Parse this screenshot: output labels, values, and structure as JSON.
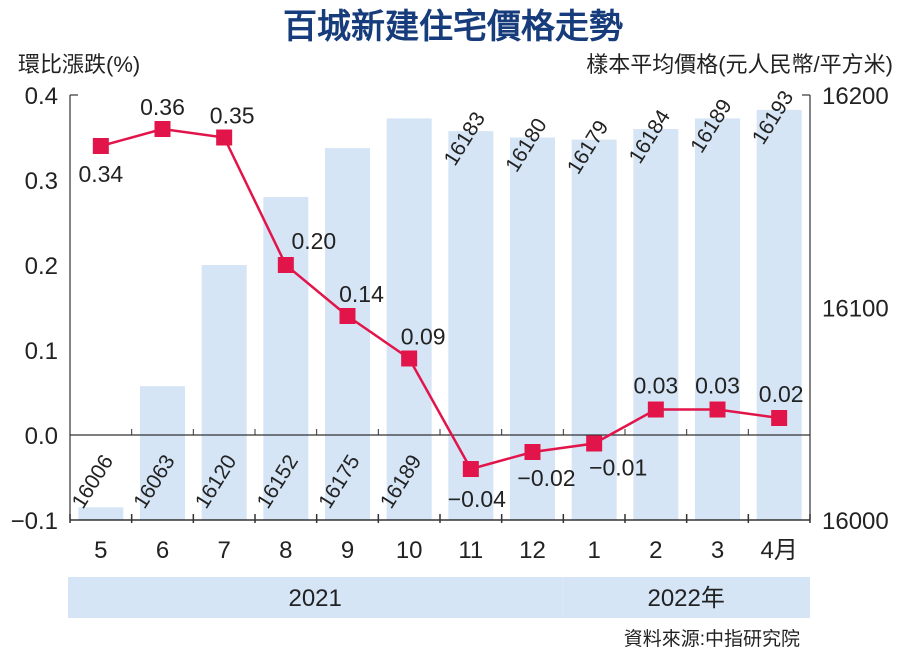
{
  "chart_data": {
    "type": "bar+line",
    "title": "百城新建住宅價格走勢",
    "ylabel_left": "環比漲跌(%)",
    "ylabel_right": "樣本平均價格(元人民幣/平方米)",
    "categories": [
      "5",
      "6",
      "7",
      "8",
      "9",
      "10",
      "11",
      "12",
      "1",
      "2",
      "3",
      "4月"
    ],
    "year_groups": [
      {
        "label": "2021",
        "count": 8
      },
      {
        "label": "2022年",
        "count": 4
      }
    ],
    "left_axis": {
      "ylim": [
        -0.1,
        0.4
      ],
      "ticks": [
        "0.4",
        "0.3",
        "0.2",
        "0.1",
        "0.0",
        "−0.1"
      ],
      "tick_values": [
        0.4,
        0.3,
        0.2,
        0.1,
        0.0,
        -0.1
      ]
    },
    "right_axis": {
      "ylim": [
        16000,
        16200
      ],
      "ticks": [
        "16200",
        "16100",
        "16000"
      ],
      "tick_values": [
        16200,
        16100,
        16000
      ]
    },
    "series": [
      {
        "name": "樣本平均價格",
        "type": "bar",
        "axis": "right",
        "color": "#d5e5f6",
        "values": [
          16006,
          16063,
          16120,
          16152,
          16175,
          16189,
          16183,
          16180,
          16179,
          16184,
          16189,
          16193
        ],
        "labels": [
          "16006",
          "16063",
          "16120",
          "16152",
          "16175",
          "16189",
          "16183",
          "16180",
          "16179",
          "16184",
          "16189",
          "16193"
        ]
      },
      {
        "name": "環比漲跌",
        "type": "line",
        "axis": "left",
        "color": "#e2154a",
        "values": [
          0.34,
          0.36,
          0.35,
          0.2,
          0.14,
          0.09,
          -0.04,
          -0.02,
          -0.01,
          0.03,
          0.03,
          0.02
        ],
        "labels": [
          "0.34",
          "0.36",
          "0.35",
          "0.20",
          "0.14",
          "0.09",
          "−0.04",
          "−0.02",
          "−0.01",
          "0.03",
          "0.03",
          "0.02"
        ]
      }
    ],
    "source": "資料來源:中指研究院",
    "colors": {
      "title": "#173c7c",
      "line": "#e2154a",
      "bar": "#d5e5f6",
      "band": "#d5e5f6"
    }
  }
}
